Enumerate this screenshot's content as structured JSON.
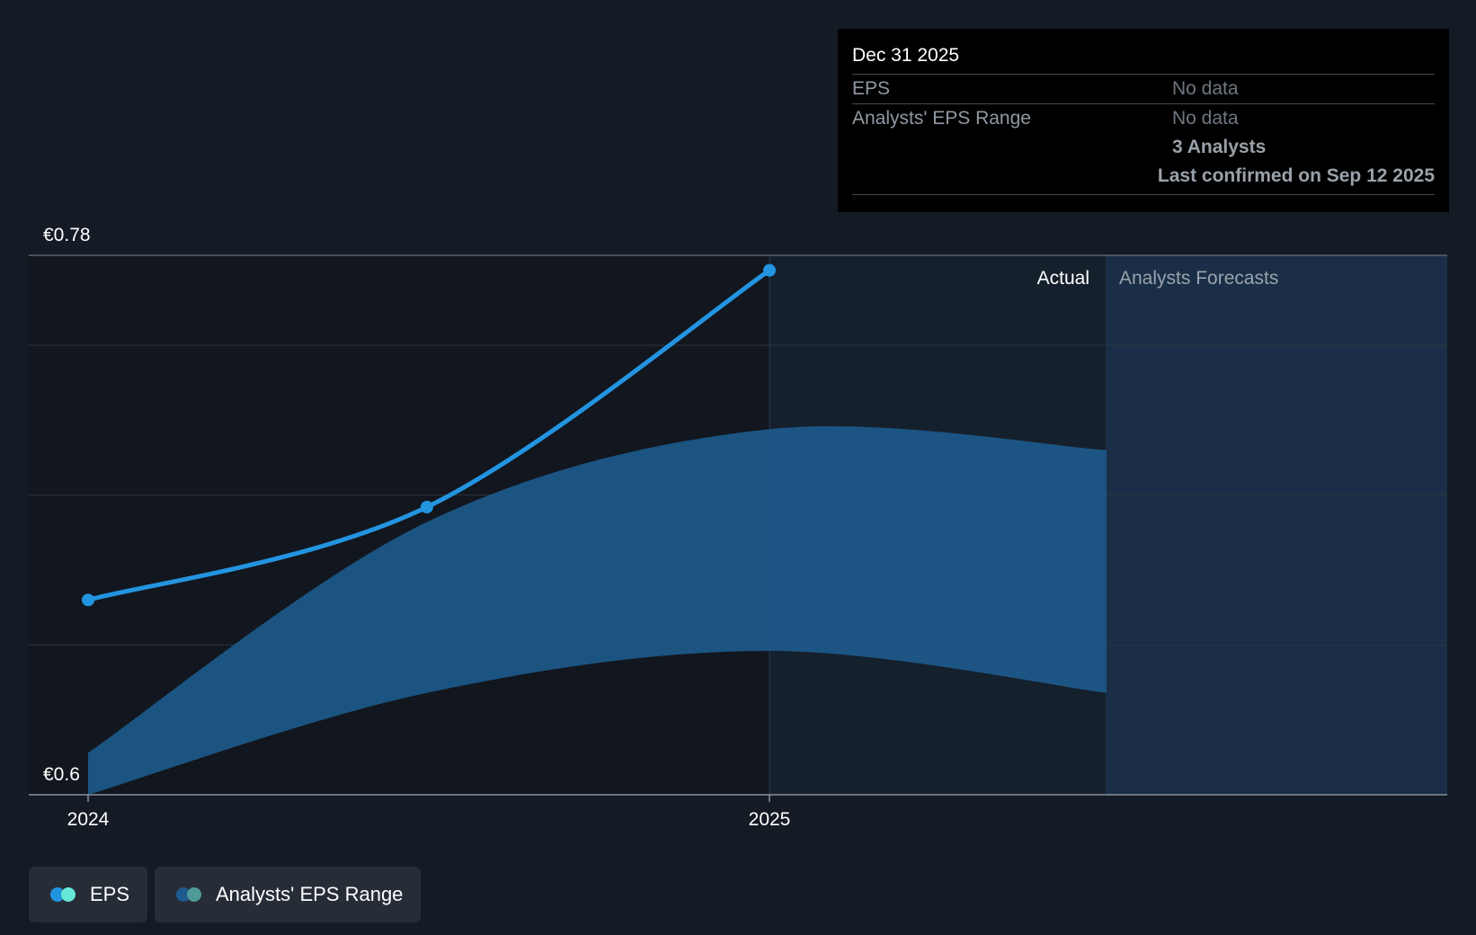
{
  "chart_data": {
    "type": "line",
    "ylim": [
      0.6,
      0.78
    ],
    "y_tick_labels": [
      "€0.78",
      "€0.6"
    ],
    "x_tick_labels": [
      "2024",
      "2025"
    ],
    "section_labels": {
      "actual": "Actual",
      "forecast": "Analysts Forecasts"
    },
    "series": [
      {
        "name": "EPS",
        "points": [
          {
            "x": "2024-01-01",
            "y": 0.665
          },
          {
            "x": "2024-07-01",
            "y": 0.696
          },
          {
            "x": "2025-01-01",
            "y": 0.775
          }
        ]
      },
      {
        "name": "Analysts' EPS Range",
        "type": "area",
        "points": [
          {
            "x": "2024-01-01",
            "low": 0.6,
            "high": 0.614
          },
          {
            "x": "2024-07-01",
            "low": 0.634,
            "high": 0.691
          },
          {
            "x": "2025-01-01",
            "low": 0.648,
            "high": 0.722
          },
          {
            "x": "2025-07-01",
            "low": 0.634,
            "high": 0.715
          }
        ]
      }
    ],
    "grid": true,
    "legend_position": "bottom-left"
  },
  "tooltip": {
    "date": "Dec 31 2025",
    "eps_label": "EPS",
    "eps_value": "No data",
    "range_label": "Analysts' EPS Range",
    "range_value": "No data",
    "analysts": "3 Analysts",
    "last_confirmed": "Last confirmed on Sep 12 2025"
  },
  "legend": {
    "eps": "EPS",
    "range": "Analysts' EPS Range"
  },
  "colors": {
    "background": "#151b24",
    "eps_line": "#2394e0",
    "range_fill": "#1d5f93",
    "forecast_region": "#1a2f47",
    "eps_dot_1": "#2394e0",
    "eps_dot_2": "#67e8d6",
    "range_dot_1": "#1e5a8e",
    "range_dot_2": "#4e9a99"
  }
}
